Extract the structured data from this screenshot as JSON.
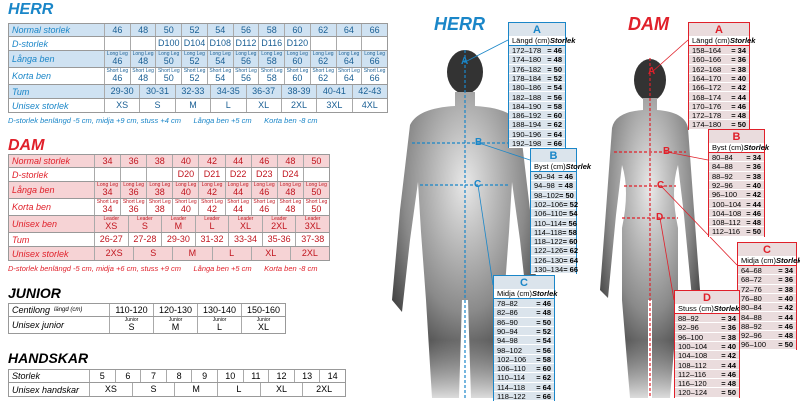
{
  "herr_table": {
    "title": "HERR",
    "rows": [
      {
        "label": "Normal storlek",
        "cells": [
          "46",
          "48",
          "50",
          "52",
          "54",
          "56",
          "58",
          "60",
          "62",
          "64",
          "66"
        ]
      },
      {
        "label": "D-storlek",
        "cells": [
          null,
          null,
          "D100",
          "D104",
          "D108",
          "D112",
          "D116",
          "D120",
          null,
          null,
          null
        ]
      },
      {
        "label": "Långa ben",
        "small": "Long Leg",
        "cells": [
          "46",
          "48",
          "50",
          "52",
          "54",
          "56",
          "58",
          "60",
          "62",
          "64",
          "66"
        ]
      },
      {
        "label": "Korta ben",
        "small": "Short Leg",
        "cells": [
          "46",
          "48",
          "50",
          "52",
          "54",
          "56",
          "58",
          "60",
          "62",
          "64",
          "66"
        ]
      },
      {
        "label": "Tum",
        "cells": [
          "29-30",
          "30-31",
          "32-33",
          "34-35",
          "36-37",
          "38-39",
          "40-41",
          "42-43"
        ]
      },
      {
        "label": "Unisex storlek",
        "cells": [
          "XS",
          "S",
          "M",
          "L",
          "XL",
          "2XL",
          "3XL",
          "4XL"
        ]
      }
    ],
    "note": "D-storlek benlängd -5 cm, midja +9 cm, stuss +4 cm      Långa ben +5 cm      Korta ben -8 cm"
  },
  "dam_table": {
    "title": "DAM",
    "rows": [
      {
        "label": "Normal storlek",
        "cells": [
          "34",
          "36",
          "38",
          "40",
          "42",
          "44",
          "46",
          "48",
          "50"
        ]
      },
      {
        "label": "D-storlek",
        "cells": [
          null,
          null,
          null,
          "D20",
          "D21",
          "D22",
          "D23",
          "D24",
          null
        ]
      },
      {
        "label": "Långa ben",
        "small": "Long Leg",
        "cells": [
          "34",
          "36",
          "38",
          "40",
          "42",
          "44",
          "46",
          "48",
          "50"
        ]
      },
      {
        "label": "Korta ben",
        "small": "Short Leg",
        "cells": [
          "34",
          "36",
          "38",
          "40",
          "42",
          "44",
          "46",
          "48",
          "50"
        ]
      },
      {
        "label": "Unisex ben",
        "small": "Leader",
        "cells": [
          "XS",
          "S",
          "M",
          "L",
          "XL",
          "2XL",
          "3XL"
        ]
      },
      {
        "label": "Tum",
        "cells": [
          "26-27",
          "27-28",
          "29-30",
          "31-32",
          "33-34",
          "35-36",
          "37-38"
        ]
      },
      {
        "label": "Unisex storlek",
        "cells": [
          "2XS",
          "S",
          "M",
          "L",
          "XL",
          "2XL"
        ]
      }
    ],
    "note": "D-storlek benlängd -5 cm, midja +6 cm, stuss +9 cm      Långa ben +5 cm      Korta ben -8 cm"
  },
  "junior_table": {
    "title": "JUNIOR",
    "rows": [
      {
        "label": "Centilong",
        "small_label": "längd (cm)",
        "cells": [
          "110-120",
          "120-130",
          "130-140",
          "150-160"
        ]
      },
      {
        "label": "Unisex junior",
        "small": "Junior",
        "cells": [
          "S",
          "M",
          "L",
          "XL"
        ]
      }
    ]
  },
  "handskar_table": {
    "title": "HANDSKAR",
    "rows": [
      {
        "label": "Storlek",
        "cells": [
          "5",
          "6",
          "7",
          "8",
          "9",
          "10",
          "11",
          "12",
          "13",
          "14"
        ]
      },
      {
        "label": "Unisex handskar",
        "cells": [
          "XS",
          "S",
          "M",
          "L",
          "XL",
          "2XL"
        ]
      }
    ]
  },
  "herr_figure": {
    "title": "HERR",
    "markers": [
      "A",
      "B",
      "C"
    ],
    "boxes": [
      {
        "letter": "A",
        "col1": "Längd (cm)",
        "col2": "Storlek",
        "rows": [
          [
            "172–178",
            "= 46"
          ],
          [
            "174–180",
            "= 48"
          ],
          [
            "176–182",
            "= 50"
          ],
          [
            "178–184",
            "= 52"
          ],
          [
            "180–186",
            "= 54"
          ],
          [
            "182–188",
            "= 56"
          ],
          [
            "184–190",
            "= 58"
          ],
          [
            "186–192",
            "= 60"
          ],
          [
            "188–194",
            "= 62"
          ],
          [
            "190–196",
            "= 64"
          ],
          [
            "192–198",
            "= 66"
          ]
        ]
      },
      {
        "letter": "B",
        "col1": "Byst (cm)",
        "col2": "Storlek",
        "rows": [
          [
            "90–94",
            "= 46"
          ],
          [
            "94–98",
            "= 48"
          ],
          [
            "98–102",
            "= 50"
          ],
          [
            "102–106",
            "= 52"
          ],
          [
            "106–110",
            "= 54"
          ],
          [
            "110–114",
            "= 56"
          ],
          [
            "114–118",
            "= 58"
          ],
          [
            "118–122",
            "= 60"
          ],
          [
            "122–126",
            "= 62"
          ],
          [
            "126–130",
            "= 64"
          ],
          [
            "130–134",
            "= 66"
          ]
        ]
      },
      {
        "letter": "C",
        "col1": "Midja (cm)",
        "col2": "Storlek",
        "rows": [
          [
            "78–82",
            "= 46"
          ],
          [
            "82–86",
            "= 48"
          ],
          [
            "86–90",
            "= 50"
          ],
          [
            "90–94",
            "= 52"
          ],
          [
            "94–98",
            "= 54"
          ],
          [
            "98–102",
            "= 56"
          ],
          [
            "102–106",
            "= 58"
          ],
          [
            "106–110",
            "= 60"
          ],
          [
            "110–114",
            "= 62"
          ],
          [
            "114–118",
            "= 64"
          ],
          [
            "118–122",
            "= 66"
          ]
        ]
      }
    ]
  },
  "dam_figure": {
    "title": "DAM",
    "markers": [
      "A",
      "B",
      "C",
      "D"
    ],
    "boxes": [
      {
        "letter": "A",
        "col1": "Längd (cm)",
        "col2": "Storlek",
        "rows": [
          [
            "158–164",
            "= 34"
          ],
          [
            "160–166",
            "= 36"
          ],
          [
            "162–168",
            "= 38"
          ],
          [
            "164–170",
            "= 40"
          ],
          [
            "166–172",
            "= 42"
          ],
          [
            "168–174",
            "= 44"
          ],
          [
            "170–176",
            "= 46"
          ],
          [
            "172–178",
            "= 48"
          ],
          [
            "174–180",
            "= 50"
          ]
        ]
      },
      {
        "letter": "B",
        "col1": "Byst (cm)",
        "col2": "Storlek",
        "rows": [
          [
            "80–84",
            "= 34"
          ],
          [
            "84–88",
            "= 36"
          ],
          [
            "88–92",
            "= 38"
          ],
          [
            "92–96",
            "= 40"
          ],
          [
            "96–100",
            "= 42"
          ],
          [
            "100–104",
            "= 44"
          ],
          [
            "104–108",
            "= 46"
          ],
          [
            "108–112",
            "= 48"
          ],
          [
            "112–116",
            "= 50"
          ]
        ]
      },
      {
        "letter": "C",
        "col1": "Midja (cm)",
        "col2": "Storlek",
        "rows": [
          [
            "64–68",
            "= 34"
          ],
          [
            "68–72",
            "= 36"
          ],
          [
            "72–76",
            "= 38"
          ],
          [
            "76–80",
            "= 40"
          ],
          [
            "80–84",
            "= 42"
          ],
          [
            "84–88",
            "= 44"
          ],
          [
            "88–92",
            "= 46"
          ],
          [
            "92–96",
            "= 48"
          ],
          [
            "96–100",
            "= 50"
          ]
        ]
      },
      {
        "letter": "D",
        "col1": "Stuss (cm)",
        "col2": "Storlek",
        "rows": [
          [
            "88–92",
            "= 34"
          ],
          [
            "92–96",
            "= 36"
          ],
          [
            "96–100",
            "= 38"
          ],
          [
            "100–104",
            "= 40"
          ],
          [
            "104–108",
            "= 42"
          ],
          [
            "108–112",
            "= 44"
          ],
          [
            "112–116",
            "= 46"
          ],
          [
            "116–120",
            "= 48"
          ],
          [
            "120–124",
            "= 50"
          ]
        ]
      }
    ]
  }
}
